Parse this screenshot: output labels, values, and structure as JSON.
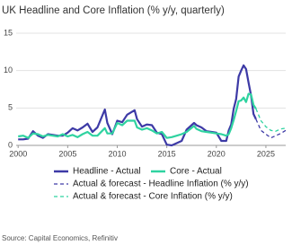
{
  "chart_data": {
    "type": "line",
    "title": "UK Headline and Core Inflation (% y/y, quarterly)",
    "source": "Source: Capital Economics, Refinitiv",
    "xlim": [
      1999.8,
      2027
    ],
    "xticks": [
      2000,
      2005,
      2010,
      2015,
      2020,
      2025
    ],
    "ylim": [
      0,
      15
    ],
    "yticks": [
      0,
      5,
      10,
      15
    ],
    "grid": true,
    "series": [
      {
        "name": "Headline - Actual",
        "color": "#3d3aa6",
        "dash": false,
        "x": [
          2000,
          2000.5,
          2001,
          2001.5,
          2002,
          2002.5,
          2003,
          2003.5,
          2004,
          2004.5,
          2005,
          2005.5,
          2006,
          2006.5,
          2007,
          2007.5,
          2008,
          2008.75,
          2009,
          2009.5,
          2010,
          2010.5,
          2011,
          2011.75,
          2012,
          2012.5,
          2013,
          2013.5,
          2014,
          2014.5,
          2015,
          2015.5,
          2016,
          2016.5,
          2017,
          2017.75,
          2018,
          2018.5,
          2019,
          2019.5,
          2020,
          2020.5,
          2021,
          2021.25,
          2021.5,
          2021.75,
          2022,
          2022.25,
          2022.5,
          2022.75,
          2023,
          2023.25,
          2023.5,
          2023.75,
          2024
        ],
        "values": [
          0.8,
          0.8,
          0.9,
          1.9,
          1.3,
          1.0,
          1.5,
          1.4,
          1.3,
          1.3,
          1.7,
          2.3,
          2.0,
          2.4,
          2.9,
          1.8,
          2.4,
          4.8,
          3.0,
          1.5,
          3.3,
          3.1,
          4.1,
          4.7,
          3.5,
          2.5,
          2.8,
          2.7,
          1.7,
          1.5,
          0.1,
          0.0,
          0.3,
          0.6,
          2.1,
          3.0,
          2.7,
          2.4,
          1.9,
          1.8,
          1.7,
          0.6,
          0.6,
          2.0,
          2.8,
          4.9,
          6.2,
          9.2,
          10.0,
          10.7,
          10.2,
          8.4,
          6.7,
          4.2,
          3.5
        ]
      },
      {
        "name": "Core - Actual",
        "color": "#2fd3a0",
        "dash": false,
        "x": [
          2000,
          2000.5,
          2001,
          2001.5,
          2002,
          2002.5,
          2003,
          2003.5,
          2004,
          2004.5,
          2005,
          2005.5,
          2006,
          2006.5,
          2007,
          2007.5,
          2008,
          2008.75,
          2009,
          2009.5,
          2010,
          2010.5,
          2011,
          2011.75,
          2012,
          2012.5,
          2013,
          2013.5,
          2014,
          2014.5,
          2015,
          2015.5,
          2016,
          2016.5,
          2017,
          2017.75,
          2018,
          2018.5,
          2019,
          2019.5,
          2020,
          2020.5,
          2021,
          2021.25,
          2021.5,
          2021.75,
          2022,
          2022.25,
          2022.5,
          2022.75,
          2023,
          2023.25,
          2023.5,
          2023.75,
          2024
        ],
        "values": [
          1.2,
          1.3,
          1.0,
          1.6,
          1.5,
          1.2,
          1.4,
          1.3,
          1.2,
          1.5,
          1.2,
          1.4,
          1.1,
          1.5,
          1.8,
          1.3,
          1.3,
          2.3,
          1.6,
          1.6,
          3.0,
          2.7,
          3.3,
          3.3,
          2.4,
          2.1,
          2.3,
          2.0,
          1.6,
          1.8,
          1.0,
          1.1,
          1.3,
          1.5,
          1.8,
          2.6,
          2.2,
          1.9,
          1.8,
          1.7,
          1.6,
          1.5,
          1.3,
          1.5,
          2.3,
          3.4,
          4.6,
          5.9,
          6.0,
          6.4,
          5.8,
          6.9,
          6.8,
          5.4,
          4.9
        ]
      },
      {
        "name": "Actual & forecast - Headline Inflation (% y/y)",
        "color": "#3d3aa6",
        "dash": true,
        "x": [
          2024,
          2024.5,
          2025,
          2025.5,
          2026,
          2026.5,
          2027
        ],
        "values": [
          3.5,
          2.0,
          1.5,
          1.0,
          1.3,
          1.6,
          2.0
        ]
      },
      {
        "name": "Actual & forecast - Core Inflation (% y/y)",
        "color": "#2fd3a0",
        "dash": true,
        "x": [
          2024,
          2024.5,
          2025,
          2025.5,
          2026,
          2026.5,
          2027
        ],
        "values": [
          4.9,
          3.3,
          2.5,
          2.0,
          1.9,
          2.2,
          2.3
        ]
      }
    ]
  }
}
